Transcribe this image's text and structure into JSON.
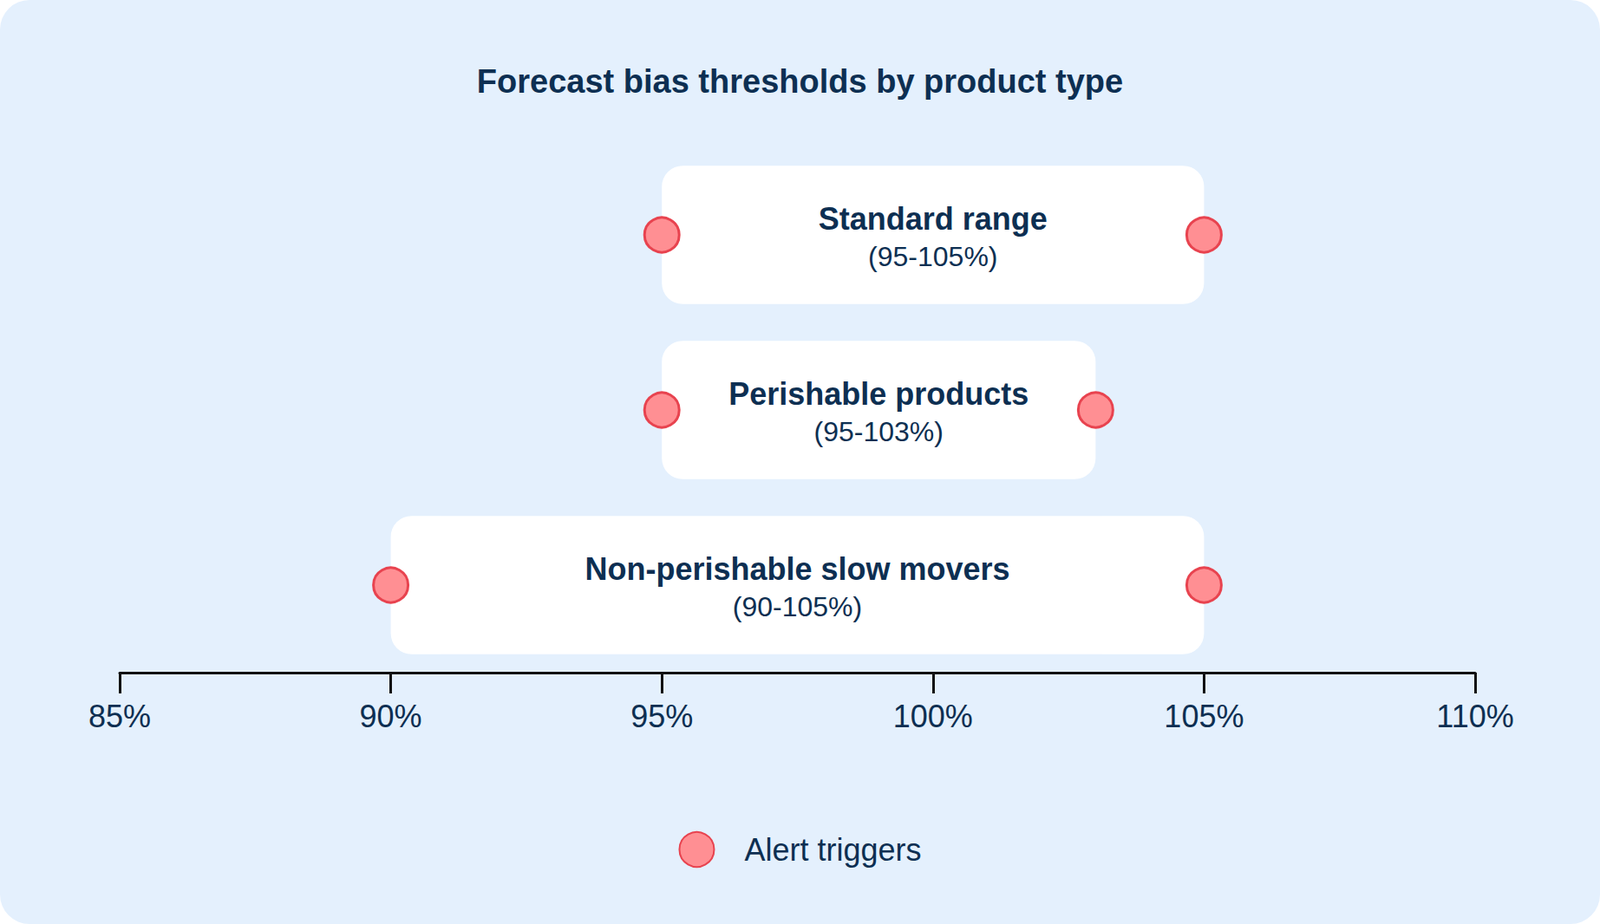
{
  "chart_data": {
    "type": "range",
    "title": "Forecast bias thresholds by product type",
    "orientation": "horizontal",
    "categories": [
      "Standard range",
      "Perishable products",
      "Non-perishable slow movers"
    ],
    "range_labels": [
      "(95-105%)",
      "(95-103%)",
      "(90-105%)"
    ],
    "low": [
      95,
      95,
      90
    ],
    "high": [
      105,
      103,
      105
    ],
    "xlim": [
      85,
      110
    ],
    "xticks": [
      {
        "value": 85,
        "label": "85%"
      },
      {
        "value": 90,
        "label": "90%"
      },
      {
        "value": 95,
        "label": "95%"
      },
      {
        "value": 100,
        "label": "100%"
      },
      {
        "value": 105,
        "label": "105%"
      },
      {
        "value": 110,
        "label": "110%"
      }
    ],
    "series": [
      {
        "name": "Alert triggers",
        "color": "#ff8f93",
        "marker": "circle"
      }
    ],
    "legend": "bottom",
    "grid": false
  }
}
